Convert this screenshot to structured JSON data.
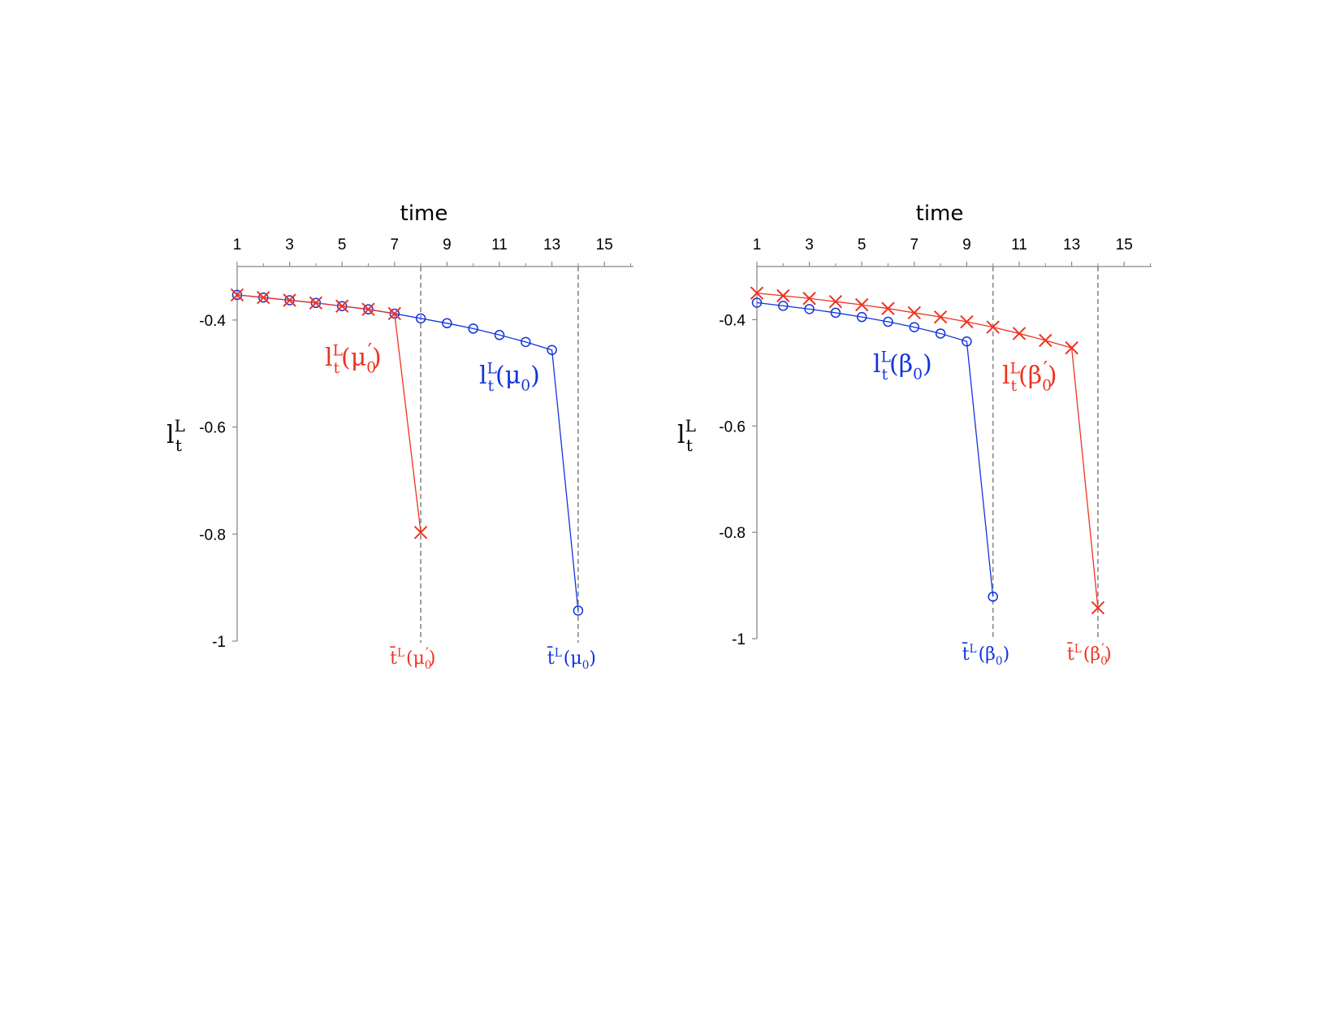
{
  "colors": {
    "red": "#ee3322",
    "blue": "#1133dd",
    "axis": "#888888",
    "guide": "#888888"
  },
  "chart_data": [
    {
      "type": "line",
      "xlabel": "time",
      "ylabel": {
        "base": "l",
        "sup": "L",
        "sub": "t"
      },
      "x_ticks": [
        1,
        3,
        5,
        7,
        9,
        11,
        13,
        15
      ],
      "y_ticks": [
        -0.4,
        -0.6,
        -0.8,
        -1
      ],
      "y_tick_labels": [
        "-0.4",
        "-0.6",
        "-0.8",
        "-1"
      ],
      "xlim": [
        1,
        16
      ],
      "ylim": [
        -1,
        -0.3
      ],
      "grid": false,
      "series": [
        {
          "name": "l_t^L(μ0)",
          "color": "blue",
          "marker": "circle",
          "x": [
            1,
            2,
            3,
            4,
            5,
            6,
            7,
            8,
            9,
            10,
            11,
            12,
            13,
            14
          ],
          "y": [
            -0.353,
            -0.358,
            -0.363,
            -0.368,
            -0.374,
            -0.38,
            -0.388,
            -0.397,
            -0.406,
            -0.416,
            -0.428,
            -0.441,
            -0.456,
            -0.943
          ]
        },
        {
          "name": "l_t^L(μ0′)",
          "color": "red",
          "marker": "x",
          "x": [
            1,
            2,
            3,
            4,
            5,
            6,
            7,
            8
          ],
          "y": [
            -0.353,
            -0.358,
            -0.363,
            -0.368,
            -0.374,
            -0.38,
            -0.388,
            -0.797
          ]
        }
      ],
      "series_labels": [
        {
          "base": "l",
          "sup": "L",
          "sub": "t",
          "arg": "(μ",
          "argsub": "0",
          "prime": "",
          "close": ")",
          "color": "red",
          "argprime": "′"
        },
        {
          "base": "l",
          "sup": "L",
          "sub": "t",
          "arg": "(μ",
          "argsub": "0",
          "prime": "",
          "close": ")",
          "color": "blue",
          "argprime": ""
        }
      ],
      "vlines": [
        {
          "x": 8,
          "color": "red",
          "label": {
            "base": "t̄",
            "sup": "L",
            "arg": "(μ",
            "argsub": "0",
            "argprime": "′",
            "close": ")"
          }
        },
        {
          "x": 14,
          "color": "blue",
          "label": {
            "base": "t̄",
            "sup": "L",
            "arg": "(μ",
            "argsub": "0",
            "argprime": "",
            "close": ")"
          }
        }
      ]
    },
    {
      "type": "line",
      "xlabel": "time",
      "ylabel": {
        "base": "l",
        "sup": "L",
        "sub": "t"
      },
      "x_ticks": [
        1,
        3,
        5,
        7,
        9,
        11,
        13,
        15
      ],
      "y_ticks": [
        -0.4,
        -0.6,
        -0.8,
        -1
      ],
      "y_tick_labels": [
        "-0.4",
        "-0.6",
        "-0.8",
        "-1"
      ],
      "xlim": [
        1,
        16
      ],
      "ylim": [
        -1,
        -0.3
      ],
      "grid": false,
      "series": [
        {
          "name": "l_t^L(β0′)",
          "color": "red",
          "marker": "x",
          "x": [
            1,
            2,
            3,
            4,
            5,
            6,
            7,
            8,
            9,
            10,
            11,
            12,
            13,
            14
          ],
          "y": [
            -0.35,
            -0.355,
            -0.36,
            -0.366,
            -0.372,
            -0.379,
            -0.387,
            -0.395,
            -0.404,
            -0.414,
            -0.426,
            -0.439,
            -0.453,
            -0.942
          ]
        },
        {
          "name": "l_t^L(β0)",
          "color": "blue",
          "marker": "circle",
          "x": [
            1,
            2,
            3,
            4,
            5,
            6,
            7,
            8,
            9,
            10
          ],
          "y": [
            -0.368,
            -0.374,
            -0.38,
            -0.387,
            -0.395,
            -0.404,
            -0.414,
            -0.426,
            -0.441,
            -0.921
          ]
        }
      ],
      "series_labels": [
        {
          "base": "l",
          "sup": "L",
          "sub": "t",
          "arg": "(β",
          "argsub": "0",
          "argprime": "",
          "close": ")",
          "color": "blue"
        },
        {
          "base": "l",
          "sup": "L",
          "sub": "t",
          "arg": "(β",
          "argsub": "0",
          "argprime": "′",
          "close": ")",
          "color": "red"
        }
      ],
      "vlines": [
        {
          "x": 10,
          "color": "blue",
          "label": {
            "base": "t̄",
            "sup": "L",
            "arg": "(β",
            "argsub": "0",
            "argprime": "",
            "close": ")"
          }
        },
        {
          "x": 14,
          "color": "red",
          "label": {
            "base": "t̄",
            "sup": "L",
            "arg": "(β",
            "argsub": "0",
            "argprime": "′",
            "close": ")"
          }
        }
      ]
    }
  ]
}
